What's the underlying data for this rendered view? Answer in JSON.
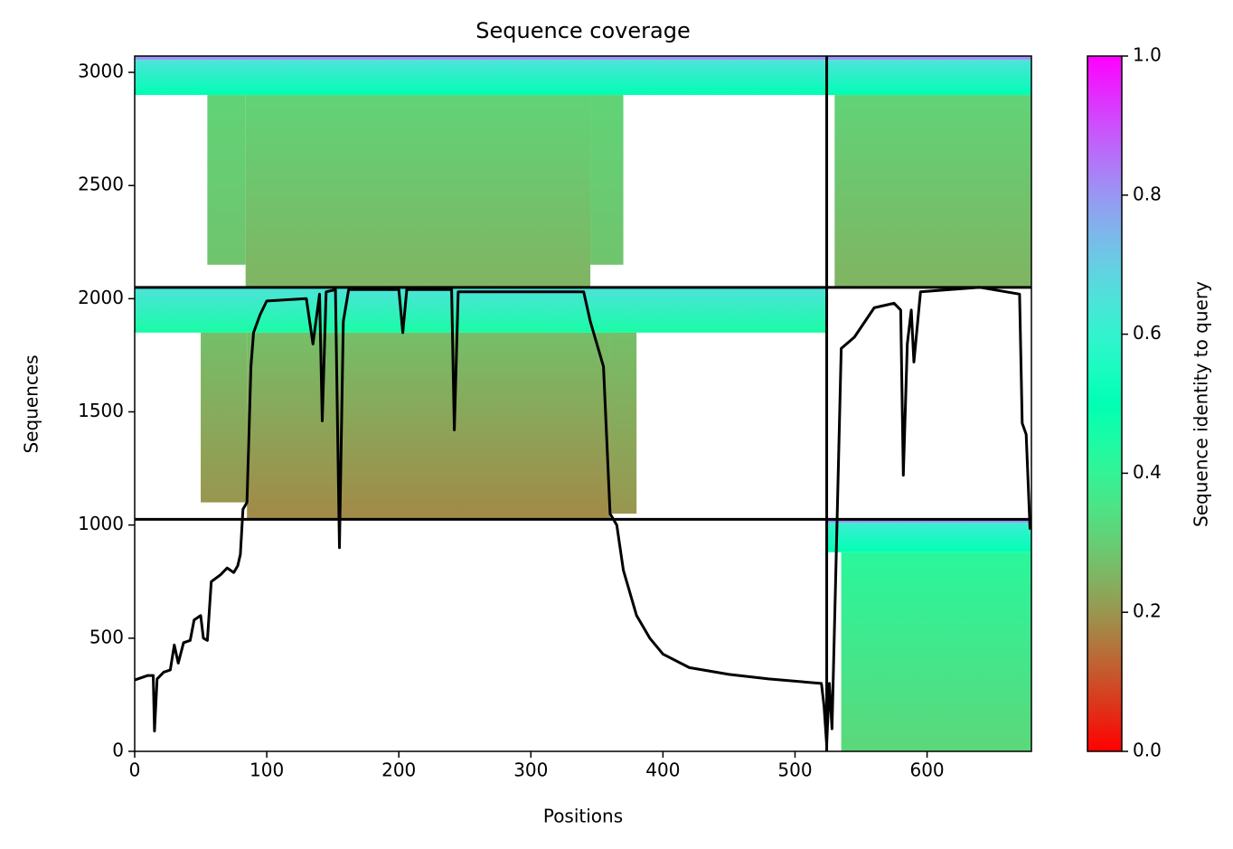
{
  "chart_data": {
    "type": "coverage",
    "title": "Sequence coverage",
    "x_label": "Positions",
    "y_label": "Sequences",
    "xlim": [
      0,
      679
    ],
    "ylim": [
      0,
      3072
    ],
    "xticks": [
      0,
      100,
      200,
      300,
      400,
      500,
      600
    ],
    "yticks": [
      0,
      500,
      1000,
      1500,
      2000,
      2500,
      3000
    ],
    "colormap": "rainbow_r",
    "blocks": [
      {
        "x": [
          84,
          345
        ],
        "y": [
          2050,
          2900
        ],
        "identity": [
          0.25,
          0.31
        ]
      },
      {
        "x": [
          55,
          84
        ],
        "y": [
          2150,
          2900
        ],
        "identity": [
          0.28,
          0.31
        ]
      },
      {
        "x": [
          345,
          370
        ],
        "y": [
          2150,
          2900
        ],
        "identity": [
          0.28,
          0.31
        ]
      },
      {
        "x": [
          0,
          524
        ],
        "y": [
          2900,
          3055
        ],
        "identity": [
          0.5,
          0.65
        ]
      },
      {
        "x": [
          0,
          524
        ],
        "y": [
          3055,
          3072
        ],
        "identity": [
          0.8,
          0.8
        ]
      },
      {
        "x": [
          530,
          679
        ],
        "y": [
          2050,
          2900
        ],
        "identity": [
          0.25,
          0.31
        ]
      },
      {
        "x": [
          524,
          679
        ],
        "y": [
          2900,
          3055
        ],
        "identity": [
          0.5,
          0.65
        ]
      },
      {
        "x": [
          524,
          679
        ],
        "y": [
          3055,
          3072
        ],
        "identity": [
          0.8,
          0.8
        ]
      },
      {
        "x": [
          85,
          360
        ],
        "y": [
          1025,
          1850
        ],
        "identity": [
          0.18,
          0.27
        ]
      },
      {
        "x": [
          50,
          85
        ],
        "y": [
          1100,
          1850
        ],
        "identity": [
          0.2,
          0.27
        ]
      },
      {
        "x": [
          360,
          380
        ],
        "y": [
          1050,
          1850
        ],
        "identity": [
          0.2,
          0.27
        ]
      },
      {
        "x": [
          0,
          524
        ],
        "y": [
          1850,
          2050
        ],
        "identity": [
          0.45,
          0.65
        ]
      },
      {
        "x": [
          535,
          679
        ],
        "y": [
          0,
          880
        ],
        "identity": [
          0.32,
          0.42
        ]
      },
      {
        "x": [
          524,
          679
        ],
        "y": [
          880,
          1010
        ],
        "identity": [
          0.5,
          0.62
        ]
      },
      {
        "x": [
          524,
          679
        ],
        "y": [
          1010,
          1025
        ],
        "identity": [
          0.8,
          0.8
        ]
      }
    ],
    "separators": {
      "y": [
        1025,
        2050
      ],
      "x": [
        524
      ]
    },
    "coverage": {
      "color": "#000000",
      "x": [
        0,
        10,
        14,
        15,
        17,
        22,
        27,
        30,
        33,
        37,
        42,
        45,
        50,
        52,
        55,
        58,
        65,
        70,
        75,
        78,
        80,
        82,
        85,
        88,
        90,
        95,
        100,
        130,
        135,
        140,
        142,
        145,
        152,
        155,
        158,
        162,
        200,
        203,
        206,
        240,
        242,
        245,
        340,
        345,
        355,
        360,
        365,
        370,
        380,
        390,
        400,
        420,
        450,
        480,
        520,
        522,
        524,
        526,
        528,
        532,
        535,
        545,
        560,
        575,
        580,
        582,
        585,
        588,
        590,
        595,
        640,
        670,
        672,
        675,
        678
      ],
      "y": [
        315,
        335,
        335,
        90,
        320,
        350,
        360,
        470,
        390,
        480,
        490,
        580,
        600,
        500,
        490,
        750,
        780,
        810,
        790,
        820,
        870,
        1070,
        1100,
        1700,
        1850,
        1930,
        1990,
        2000,
        1800,
        2020,
        1460,
        2030,
        2040,
        900,
        1900,
        2040,
        2040,
        1850,
        2040,
        2040,
        1420,
        2030,
        2030,
        1900,
        1700,
        1050,
        1000,
        800,
        600,
        500,
        430,
        370,
        340,
        320,
        300,
        200,
        30,
        300,
        100,
        1050,
        1780,
        1830,
        1960,
        1980,
        1950,
        1220,
        1800,
        1950,
        1720,
        2030,
        2050,
        2020,
        1450,
        1400,
        980
      ]
    },
    "colorbar": {
      "label": "Sequence identity to query",
      "lim": [
        0,
        1
      ],
      "ticks": [
        {
          "value": 0,
          "label": "0.0"
        },
        0.2,
        0.4,
        0.6,
        0.8,
        {
          "value": 1,
          "label": "1.0"
        }
      ]
    }
  }
}
